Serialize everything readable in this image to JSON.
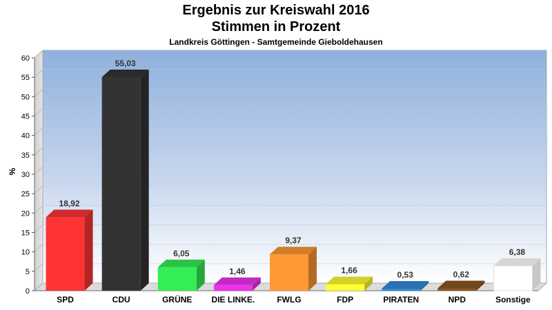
{
  "header": {
    "title": "Ergebnis zur Kreiswahl 2016",
    "subtitle": "Stimmen in Prozent",
    "region": "Landkreis Göttingen - Samtgemeinde Gieboldehausen"
  },
  "chart_data": {
    "type": "bar",
    "ylabel": "%",
    "ylim": [
      0,
      60
    ],
    "yticks": [
      0,
      5,
      10,
      15,
      20,
      25,
      30,
      35,
      40,
      45,
      50,
      55,
      60
    ],
    "grid": true,
    "categories": [
      "SPD",
      "CDU",
      "GRÜNE",
      "DIE LINKE.",
      "FWLG",
      "FDP",
      "PIRATEN",
      "NPD",
      "Sonstige"
    ],
    "values": [
      18.92,
      55.03,
      6.05,
      1.46,
      9.37,
      1.66,
      0.53,
      0.62,
      6.38
    ],
    "value_labels": [
      "18,92",
      "55,03",
      "6,05",
      "1,46",
      "9,37",
      "1,66",
      "0,53",
      "0,62",
      "6,38"
    ],
    "colors": [
      "#ff3333",
      "#333333",
      "#33ee55",
      "#ee33ee",
      "#ff9933",
      "#ffff33",
      "#3388dd",
      "#885522",
      "#ffffff"
    ]
  }
}
